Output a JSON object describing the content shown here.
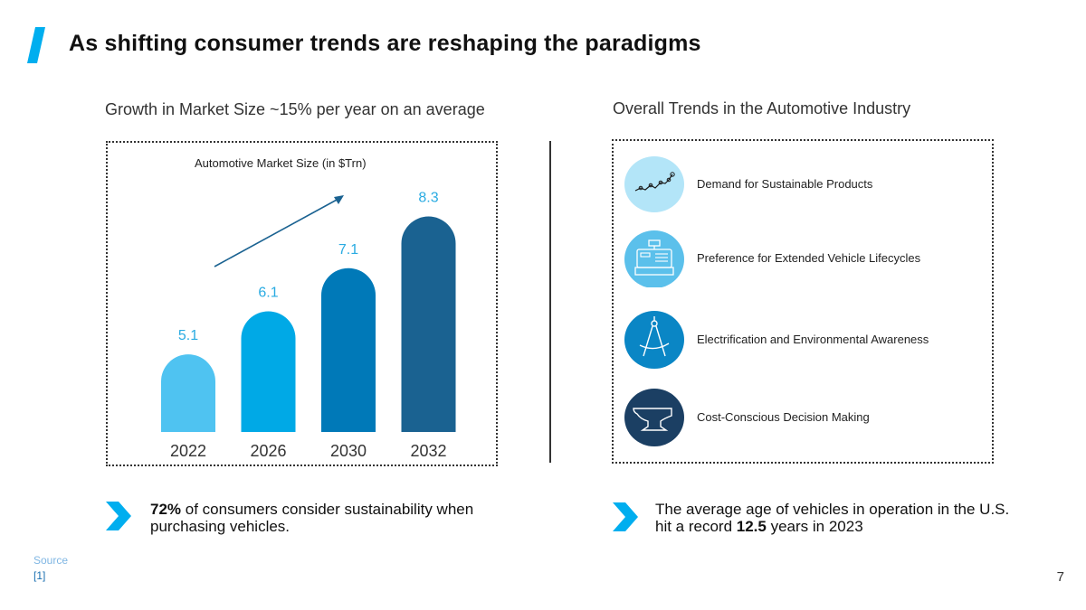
{
  "title": "As shifting consumer trends are reshaping the paradigms",
  "colors": {
    "accent": "#00AEEF",
    "label_blue": "#29ABE2",
    "dark_navy": "#1B3F63"
  },
  "left": {
    "section_title": "Growth in Market Size ~15% per year on an average",
    "callout_bold": "72%",
    "callout_text": " of consumers consider sustainability when purchasing vehicles."
  },
  "right": {
    "section_title": "Overall Trends in the Automotive Industry",
    "trends": [
      {
        "label": "Demand for Sustainable Products",
        "icon": "line-graph-icon",
        "color": "#B3E5F8"
      },
      {
        "label": "Preference for Extended Vehicle Lifecycles",
        "icon": "cash-register-icon",
        "color": "#5BC0EB"
      },
      {
        "label": "Electrification and Environmental Awareness",
        "icon": "compass-icon",
        "color": "#0A86C5"
      },
      {
        "label": "Cost-Conscious Decision Making",
        "icon": "anvil-icon",
        "color": "#1B3F63"
      }
    ],
    "callout_pre": "The average age of vehicles in operation in the U.S. hit a record ",
    "callout_bold": "12.5",
    "callout_post": " years in 2023"
  },
  "chart_data": {
    "type": "bar",
    "title": "Automotive Market Size (in $Trn)",
    "categories": [
      "2022",
      "2026",
      "2030",
      "2032"
    ],
    "values": [
      5.1,
      6.1,
      7.1,
      8.3
    ],
    "bar_colors": [
      "#4FC3F1",
      "#00A9E6",
      "#0079B8",
      "#1A6291"
    ],
    "label_color": "#29ABE2",
    "ylim": [
      3.3,
      8.5
    ],
    "trend_arrow": true,
    "grid": false
  },
  "source": {
    "label": "Source",
    "ref": "[1]"
  },
  "page_number": "7"
}
